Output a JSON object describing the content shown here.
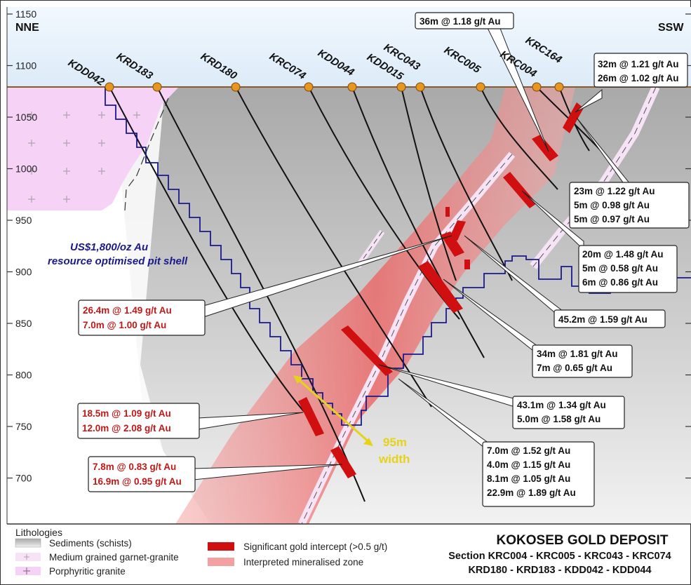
{
  "directions": {
    "left": "NNE",
    "right": "SSW"
  },
  "elevations": [
    {
      "value": 1150,
      "label": "1150"
    },
    {
      "value": 1100,
      "label": "1100"
    },
    {
      "value": 1050,
      "label": "1050"
    },
    {
      "value": 1000,
      "label": "1000"
    },
    {
      "value": 950,
      "label": "950"
    },
    {
      "value": 900,
      "label": "900"
    },
    {
      "value": 850,
      "label": "850"
    },
    {
      "value": 800,
      "label": "800"
    },
    {
      "value": 750,
      "label": "750"
    },
    {
      "value": 700,
      "label": "700"
    }
  ],
  "holes": [
    {
      "name": "KDD042"
    },
    {
      "name": "KRD183"
    },
    {
      "name": "KRD180"
    },
    {
      "name": "KRC074"
    },
    {
      "name": "KDD044"
    },
    {
      "name": "KRC043"
    },
    {
      "name": "KDD015"
    },
    {
      "name": "KRC005"
    },
    {
      "name": "KRC004"
    },
    {
      "name": "KRC164"
    }
  ],
  "pit_shell_label": [
    "US$1,800/oz Au",
    "resource optimised pit shell"
  ],
  "width_label": [
    "95m",
    "width"
  ],
  "annotations": {
    "top": [
      "36m @ 1.18 g/t Au"
    ],
    "right1": [
      "32m @ 1.21 g/t Au",
      "26m @ 1.02 g/t Au"
    ],
    "right2": [
      "23m @ 1.22 g/t Au",
      "5m @ 0.98 g/t Au",
      "5m @ 0.97 g/t Au"
    ],
    "right3": [
      "20m @ 1.48 g/t Au",
      "5m @ 0.58 g/t Au",
      "6m @ 0.86 g/t Au"
    ],
    "mid1": [
      "45.2m @ 1.59 g/t Au"
    ],
    "mid2": [
      "34m @ 1.81 g/t Au",
      "7m @ 0.65 g/t Au"
    ],
    "mid3": [
      "43.1m @ 1.34 g/t Au",
      "5.0m @ 1.58 g/t Au"
    ],
    "bottom": [
      "7.0m @ 1.52 g/t Au",
      "4.0m @ 1.15 g/t Au",
      "8.1m @ 1.05 g/t Au",
      "22.9m @ 1.89 g/t Au"
    ],
    "left1": [
      "26.4m @ 1.49 g/t Au",
      "7.0m @ 1.00 g/t Au"
    ],
    "left2": [
      "18.5m @ 1.09 g/t Au",
      "12.0m @ 2.08 g/t Au"
    ],
    "left3": [
      "7.8m @ 0.83 g/t Au",
      "16.9m @ 0.95 g/t Au"
    ]
  },
  "legend": {
    "title": "Lithologies",
    "items": [
      {
        "label": "Sediments (schists)"
      },
      {
        "label": "Medium grained garnet-granite"
      },
      {
        "label": "Porphyritic granite"
      },
      {
        "label": "Significant gold intercept (>0.5 g/t)"
      },
      {
        "label": "Interpreted mineralised zone"
      }
    ]
  },
  "title": {
    "main": "KOKOSEB GOLD DEPOSIT",
    "line1": "Section KRC004 - KRC005 - KRC043 - KRC074",
    "line2": "KRD180 - KRD183 - KDD042 - KDD044"
  },
  "colors": {
    "sky": "#e6f1fb",
    "sediment": "#b8b8b8",
    "porphyry": "#f7d2f7",
    "mineralised": "#f08080",
    "intercept": "#d01010",
    "pit": "#1a1a8c",
    "width_arrow": "#e6d21a",
    "collar": "#e8961e"
  }
}
